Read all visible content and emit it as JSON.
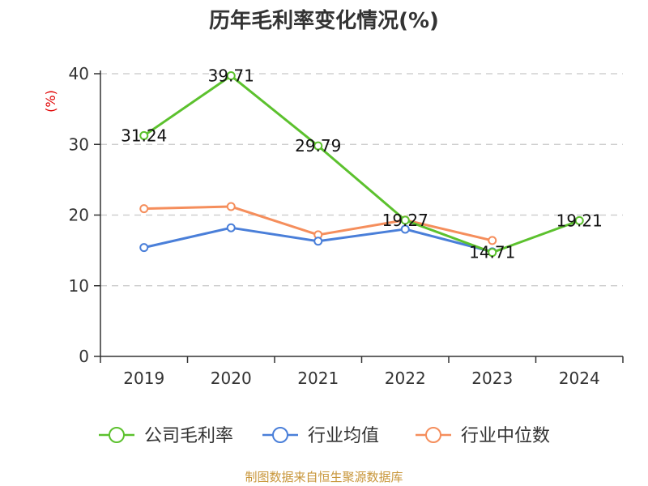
{
  "chart_data": {
    "type": "line",
    "title": "历年毛利率变化情况(%)",
    "ylabel": "(%)",
    "categories": [
      "2019",
      "2020",
      "2021",
      "2022",
      "2023",
      "2024"
    ],
    "ylim": [
      0,
      40
    ],
    "yticks": [
      0,
      10,
      20,
      30,
      40
    ],
    "grid": true,
    "legend_position": "bottom",
    "series": [
      {
        "name": "公司毛利率",
        "color": "#5cc12e",
        "values": [
          31.24,
          39.71,
          29.79,
          19.27,
          14.71,
          19.21
        ],
        "labels": [
          "31.24",
          "39.71",
          "29.79",
          "19.27",
          "14.71",
          "19.21"
        ]
      },
      {
        "name": "行业均值",
        "color": "#4a7fd9",
        "values": [
          15.4,
          18.2,
          16.3,
          18.0,
          14.8,
          null
        ],
        "labels": []
      },
      {
        "name": "行业中位数",
        "color": "#f58e5c",
        "values": [
          20.9,
          21.2,
          17.2,
          19.3,
          16.4,
          null
        ],
        "labels": []
      }
    ]
  },
  "source": "制图数据来自恒生聚源数据库"
}
